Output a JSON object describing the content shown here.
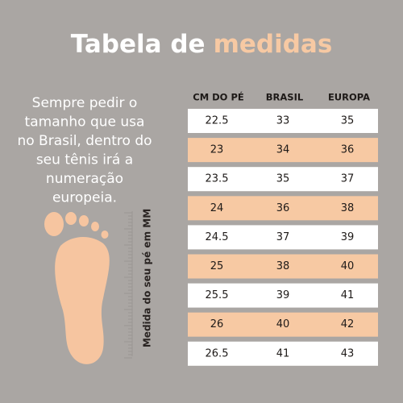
{
  "header": {
    "title": [
      "Tabela de",
      "medidas"
    ]
  },
  "description": [
    "Sempre pedir o",
    "tamanho que usa",
    "no Brasil, dentro do",
    "seu tênis irá a",
    "numeração",
    "europeia."
  ],
  "ruler_label": "Medida do seu pé em MM",
  "table": {
    "columns": [
      "CM DO PÉ",
      "BRASIL",
      "EUROPA"
    ],
    "rows": [
      [
        22.5,
        33,
        35
      ],
      [
        23,
        34,
        36
      ],
      [
        23.5,
        35,
        37
      ],
      [
        24,
        36,
        38
      ],
      [
        24.5,
        37,
        39
      ],
      [
        25,
        38,
        40
      ],
      [
        25.5,
        39,
        41
      ],
      [
        26,
        40,
        42
      ],
      [
        26.5,
        41,
        43
      ]
    ]
  }
}
